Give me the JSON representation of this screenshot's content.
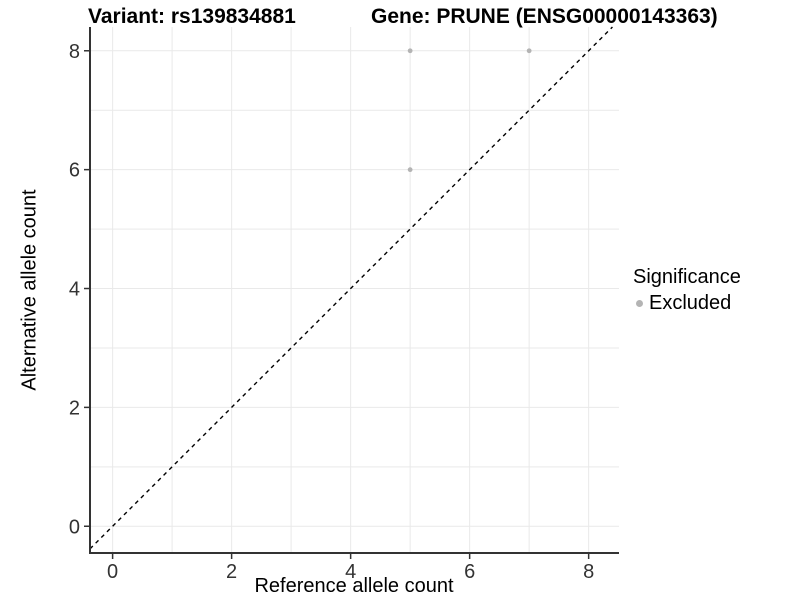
{
  "figure": {
    "title_left": "Variant: rs139834881",
    "title_right": "Gene: PRUNE (ENSG00000143363)"
  },
  "legend": {
    "title": "Significance",
    "items": [
      {
        "label": "Excluded",
        "color": "#b4b4b4"
      }
    ]
  },
  "chart_data": {
    "type": "scatter",
    "title": "Variant: rs139834881    Gene: PRUNE (ENSG00000143363)",
    "xlabel": "Reference allele count",
    "ylabel": "Alternative allele count",
    "xlim": [
      -0.38,
      8.51
    ],
    "ylim": [
      -0.45,
      8.4
    ],
    "x_ticks": [
      0,
      2,
      4,
      6,
      8
    ],
    "y_ticks": [
      0,
      2,
      4,
      6,
      8
    ],
    "grid_x": [
      0,
      1,
      2,
      3,
      4,
      5,
      6,
      7,
      8
    ],
    "grid_y": [
      0,
      1,
      2,
      3,
      4,
      5,
      6,
      7,
      8
    ],
    "grid": true,
    "legend_position": "right",
    "series": [
      {
        "name": "Excluded",
        "color": "#b4b4b4",
        "points": [
          [
            5,
            8
          ],
          [
            7,
            8
          ],
          [
            5,
            6
          ]
        ]
      }
    ],
    "identity_line": {
      "equation": "y = x",
      "style": "dashed",
      "color": "#000000"
    },
    "colors": {
      "grid": "#e9e9e9",
      "axis": "#333333",
      "tick_label": "#333333",
      "point": "#b4b4b4",
      "background": "#ffffff"
    }
  }
}
